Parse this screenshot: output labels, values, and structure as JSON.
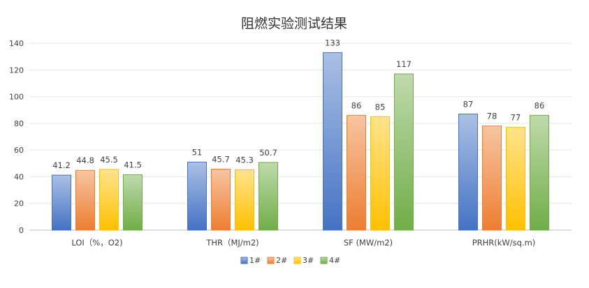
{
  "chart_data": {
    "type": "bar",
    "title": "阻燃实验测试结果",
    "xlabel": "",
    "ylabel": "",
    "ylim": [
      0,
      140
    ],
    "yticks": [
      0,
      20,
      40,
      60,
      80,
      100,
      120,
      140
    ],
    "grid": true,
    "legend_position": "bottom",
    "categories": [
      "LOI（%，O2)",
      "THR（MJ/m2)",
      "SF (MW/m2)",
      "PRHR(kW/sq.m)"
    ],
    "series": [
      {
        "name": "1#",
        "values": [
          41.2,
          51,
          133,
          87
        ],
        "labels": [
          "41.2",
          "51",
          "133",
          "87"
        ],
        "color": "#4472c4"
      },
      {
        "name": "2#",
        "values": [
          44.8,
          45.7,
          86,
          78
        ],
        "labels": [
          "44.8",
          "45.7",
          "86",
          "78"
        ],
        "color": "#ed7d31"
      },
      {
        "name": "3#",
        "values": [
          45.5,
          45.3,
          85,
          77
        ],
        "labels": [
          "45.5",
          "45.3",
          "85",
          "77"
        ],
        "color": "#ffc000"
      },
      {
        "name": "4#",
        "values": [
          41.5,
          50.7,
          117,
          86
        ],
        "labels": [
          "41.5",
          "50.7",
          "117",
          "86"
        ],
        "color": "#70ad47"
      }
    ]
  }
}
